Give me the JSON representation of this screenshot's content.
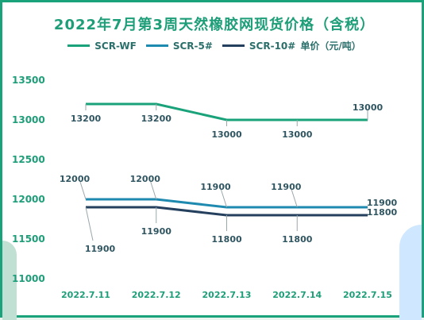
{
  "title": "2022年7月第3周天然橡胶网现货价格（含税）",
  "legend": {
    "unit": "单价（元/吨）"
  },
  "colors": {
    "wf": "#1aa37a",
    "s5": "#1f8ab0",
    "s10": "#25405e",
    "axis_text": "#1e9e78",
    "label_text": "#2f5561"
  },
  "chart_data": {
    "type": "line",
    "categories": [
      "2022.7.11",
      "2022.7.12",
      "2022.7.13",
      "2022.7.14",
      "2022.7.15"
    ],
    "series": [
      {
        "name": "SCR-WF",
        "values": [
          13200,
          13200,
          13000,
          13000,
          13000
        ],
        "labels": [
          "13200",
          "13200",
          "13000",
          "13000",
          "13000"
        ]
      },
      {
        "name": "SCR-5#",
        "values": [
          12000,
          12000,
          11900,
          11900,
          11900
        ],
        "labels": [
          "12000",
          "12000",
          "11900",
          "11900",
          "11900"
        ]
      },
      {
        "name": "SCR-10#",
        "values": [
          11900,
          11900,
          11800,
          11800,
          11800
        ],
        "labels": [
          "11900",
          "11900",
          "11800",
          "11800",
          "11800"
        ]
      }
    ],
    "yticks": [
      "11000",
      "11500",
      "12000",
      "12500",
      "13000",
      "13500"
    ],
    "ylim": [
      11000,
      13500
    ],
    "grid": false,
    "legend_position": "top"
  }
}
